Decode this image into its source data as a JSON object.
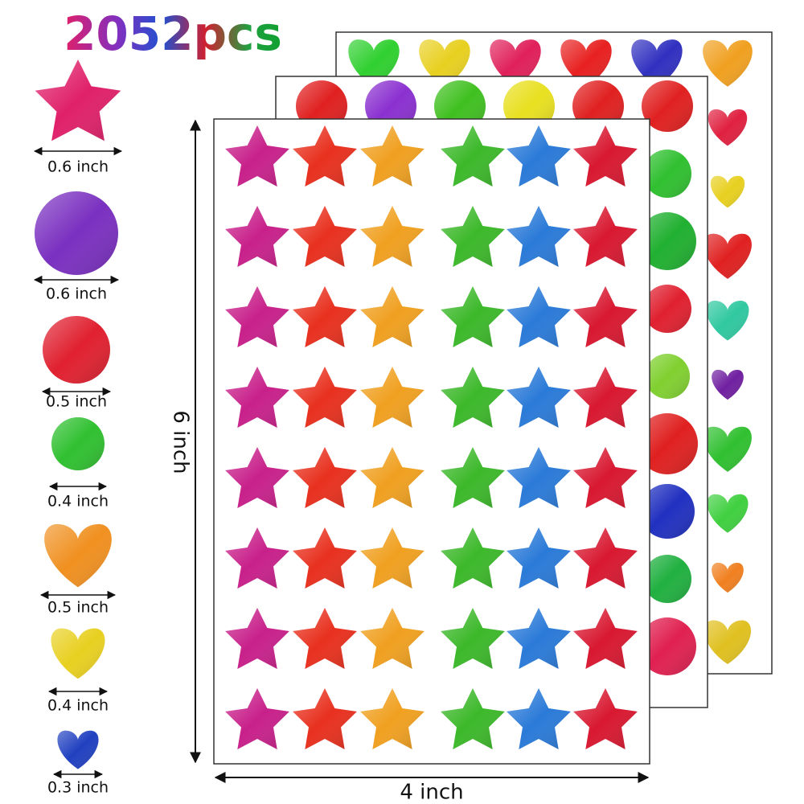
{
  "title": "2052pcs",
  "sizes": [
    "0.6 inch",
    "0.6 inch",
    "0.5 inch",
    "0.4 inch",
    "0.5 inch",
    "0.4 inch",
    "0.3 inch"
  ],
  "dimensions": {
    "height": "6 inch",
    "width": "4 inch"
  }
}
